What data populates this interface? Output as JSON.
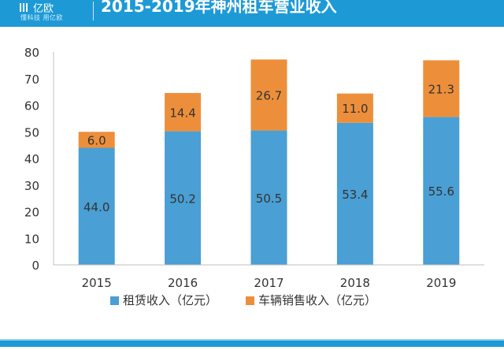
{
  "header": {
    "logo_name": "亿欧",
    "logo_tagline": "懂科技 用亿欧",
    "title": "2015-2019年神州租车营业收入"
  },
  "chart_data": {
    "type": "bar",
    "stacked": true,
    "categories": [
      "2015",
      "2016",
      "2017",
      "2018",
      "2019"
    ],
    "series": [
      {
        "name": "租赁收入（亿元）",
        "color": "#4a9fd4",
        "values": [
          44.0,
          50.2,
          50.5,
          53.4,
          55.6
        ]
      },
      {
        "name": "车辆销售收入（亿元）",
        "color": "#ed8f3a",
        "values": [
          6.0,
          14.4,
          26.7,
          11.0,
          21.3
        ]
      }
    ],
    "yticks": [
      0,
      10,
      20,
      30,
      40,
      50,
      60,
      70,
      80
    ],
    "ylim": [
      0,
      80
    ],
    "legend_position": "bottom",
    "grid": false
  }
}
